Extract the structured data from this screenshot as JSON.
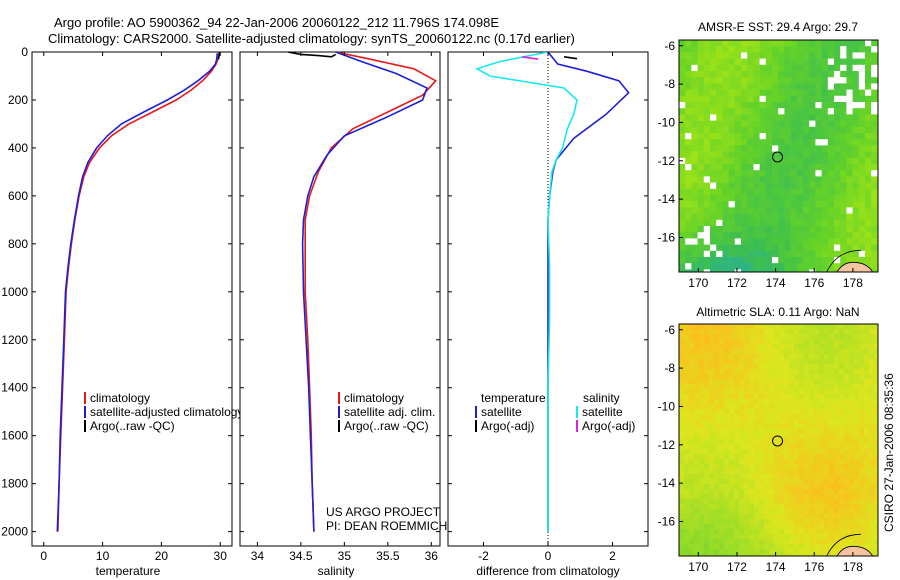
{
  "header": {
    "line1": "Argo profile: AO 5900362_94 22-Jan-2006 20060122_212 11.796S 174.098E",
    "line2": "Climatology: CARS2000. Satellite-adjusted climatology: synTS_20060122.nc (0.17d earlier)"
  },
  "side_label": "CSIRO 27-Jan-2006 08:35:36",
  "project": {
    "line1": "US ARGO PROJECT",
    "line2": "PI: DEAN ROEMMICH"
  },
  "colors": {
    "climatology": "#e41a1c",
    "satellite": "#1f1fd8",
    "argo": "#000000",
    "satellite_diff": "#18e8f0",
    "argo_diff": "#e020e0"
  },
  "depth_axis": {
    "ticks": [
      0,
      200,
      400,
      600,
      800,
      1000,
      1200,
      1400,
      1600,
      1800,
      2000
    ],
    "range": [
      0,
      2060
    ]
  },
  "chart_data": [
    {
      "id": "temperature",
      "type": "line",
      "xlabel": "temperature",
      "ylabel": "depth",
      "xlim": [
        -2,
        32
      ],
      "xticks": [
        0,
        10,
        20,
        30
      ],
      "legend": [
        "climatology",
        "satellite-adjusted climatology",
        "Argo(..raw -QC)"
      ],
      "series": [
        {
          "name": "climatology",
          "color": "#e41a1c",
          "points": [
            [
              29.8,
              5
            ],
            [
              29.6,
              30
            ],
            [
              29.3,
              50
            ],
            [
              28.5,
              80
            ],
            [
              27,
              120
            ],
            [
              25,
              160
            ],
            [
              22.5,
              200
            ],
            [
              18.5,
              250
            ],
            [
              14.5,
              300
            ],
            [
              11.5,
              350
            ],
            [
              9.5,
              400
            ],
            [
              7.8,
              460
            ],
            [
              6.8,
              520
            ],
            [
              6,
              600
            ],
            [
              5.3,
              700
            ],
            [
              4.7,
              800
            ],
            [
              4.2,
              900
            ],
            [
              3.8,
              1000
            ],
            [
              3.5,
              1200
            ],
            [
              3.2,
              1400
            ],
            [
              2.9,
              1600
            ],
            [
              2.6,
              1800
            ],
            [
              2.4,
              2000
            ]
          ]
        },
        {
          "name": "satellite-adjusted climatology",
          "color": "#1f1fd8",
          "points": [
            [
              29.5,
              5
            ],
            [
              29.4,
              30
            ],
            [
              29.2,
              50
            ],
            [
              28.2,
              80
            ],
            [
              26.2,
              120
            ],
            [
              23.8,
              160
            ],
            [
              21,
              200
            ],
            [
              17,
              250
            ],
            [
              13.2,
              300
            ],
            [
              10.8,
              350
            ],
            [
              9,
              400
            ],
            [
              7.5,
              460
            ],
            [
              6.6,
              520
            ],
            [
              5.9,
              600
            ],
            [
              5.2,
              700
            ],
            [
              4.6,
              800
            ],
            [
              4.1,
              900
            ],
            [
              3.7,
              1000
            ],
            [
              3.4,
              1200
            ],
            [
              3.1,
              1400
            ],
            [
              2.8,
              1600
            ],
            [
              2.6,
              1800
            ],
            [
              2.3,
              2000
            ]
          ]
        },
        {
          "name": "Argo(..raw -QC)",
          "color": "#000000",
          "points": [
            [
              29.9,
              0
            ],
            [
              29.8,
              15
            ],
            [
              29.7,
              30
            ]
          ]
        }
      ]
    },
    {
      "id": "salinity",
      "type": "line",
      "xlabel": "salinity",
      "ylabel": "depth",
      "xlim": [
        33.8,
        36.1
      ],
      "xticks": [
        34,
        34.5,
        35,
        35.5,
        36
      ],
      "legend": [
        "climatology",
        "satellite adj. clim.",
        "Argo(..raw -QC)"
      ],
      "series": [
        {
          "name": "climatology",
          "color": "#e41a1c",
          "points": [
            [
              34.9,
              0
            ],
            [
              35.3,
              30
            ],
            [
              35.8,
              70
            ],
            [
              36.05,
              120
            ],
            [
              35.9,
              180
            ],
            [
              35.5,
              250
            ],
            [
              35.1,
              320
            ],
            [
              34.85,
              400
            ],
            [
              34.7,
              500
            ],
            [
              34.6,
              600
            ],
            [
              34.55,
              700
            ],
            [
              34.55,
              800
            ],
            [
              34.55,
              1000
            ],
            [
              34.58,
              1200
            ],
            [
              34.6,
              1400
            ],
            [
              34.62,
              1600
            ],
            [
              34.63,
              1800
            ],
            [
              34.65,
              2000
            ]
          ]
        },
        {
          "name": "satellite adj. clim.",
          "color": "#1f1fd8",
          "points": [
            [
              34.9,
              0
            ],
            [
              35.2,
              40
            ],
            [
              35.6,
              90
            ],
            [
              35.95,
              150
            ],
            [
              35.9,
              200
            ],
            [
              35.5,
              270
            ],
            [
              35.0,
              350
            ],
            [
              34.8,
              430
            ],
            [
              34.65,
              520
            ],
            [
              34.58,
              600
            ],
            [
              34.53,
              700
            ],
            [
              34.52,
              800
            ],
            [
              34.53,
              1000
            ],
            [
              34.56,
              1200
            ],
            [
              34.59,
              1400
            ],
            [
              34.61,
              1600
            ],
            [
              34.63,
              1800
            ],
            [
              34.65,
              2000
            ]
          ]
        },
        {
          "name": "Argo(..raw -QC)",
          "color": "#000000",
          "points": [
            [
              34.35,
              0
            ],
            [
              34.5,
              10
            ],
            [
              34.7,
              15
            ],
            [
              34.85,
              20
            ],
            [
              34.9,
              10
            ]
          ]
        }
      ]
    },
    {
      "id": "difference",
      "type": "line",
      "xlabel": "difference from climatology",
      "ylabel": "depth",
      "xlim": [
        -3.1,
        3.1
      ],
      "xticks": [
        -2,
        0,
        2
      ],
      "legend_left": [
        "temperature",
        "satellite",
        "Argo(-adj)"
      ],
      "legend_right": [
        "salinity",
        "satellite",
        "Argo(-adj)"
      ],
      "series": [
        {
          "name": "temperature satellite",
          "color": "#1f1fd8",
          "points": [
            [
              0,
              0
            ],
            [
              0.3,
              50
            ],
            [
              1.2,
              80
            ],
            [
              2.2,
              120
            ],
            [
              2.5,
              170
            ],
            [
              1.8,
              260
            ],
            [
              0.8,
              360
            ],
            [
              0.25,
              450
            ],
            [
              0.15,
              500
            ],
            [
              0.1,
              550
            ],
            [
              0.05,
              600
            ],
            [
              0,
              700
            ],
            [
              0,
              800
            ],
            [
              0,
              2000
            ]
          ]
        },
        {
          "name": "salinity satellite",
          "color": "#18e8f0",
          "points": [
            [
              0,
              0
            ],
            [
              -1.5,
              40
            ],
            [
              -2.2,
              70
            ],
            [
              -1.8,
              100
            ],
            [
              0.5,
              150
            ],
            [
              0.9,
              200
            ],
            [
              0.8,
              260
            ],
            [
              0.6,
              320
            ],
            [
              0.45,
              400
            ],
            [
              0.25,
              450
            ],
            [
              0.12,
              500
            ],
            [
              0.05,
              600
            ],
            [
              0,
              700
            ],
            [
              0.05,
              900
            ],
            [
              0.05,
              1100
            ],
            [
              0,
              1400
            ],
            [
              0,
              2000
            ]
          ]
        },
        {
          "name": "Argo(-adj) salinity",
          "color": "#e020e0",
          "points": [
            [
              -0.8,
              20
            ],
            [
              -0.3,
              30
            ]
          ]
        },
        {
          "name": "Argo(-adj) temperature",
          "color": "#000000",
          "points": [
            [
              0.5,
              20
            ],
            [
              0.9,
              28
            ]
          ]
        }
      ]
    }
  ],
  "maps": [
    {
      "id": "sst-map",
      "title": "AMSR-E SST: 29.4 Argo: 29.7",
      "xticks": [
        170,
        172,
        174,
        176,
        178
      ],
      "yticks": [
        -6,
        -8,
        -10,
        -12,
        -14,
        -16
      ],
      "xlim": [
        169,
        179.3
      ],
      "ylim": [
        -17.8,
        -5.7
      ],
      "marker": [
        174.1,
        -11.8
      ]
    },
    {
      "id": "sla-map",
      "title": "Altimetric SLA: 0.11 Argo: NaN",
      "xticks": [
        170,
        172,
        174,
        176,
        178
      ],
      "yticks": [
        -6,
        -8,
        -10,
        -12,
        -14,
        -16
      ],
      "xlim": [
        169,
        179.3
      ],
      "ylim": [
        -17.8,
        -5.7
      ],
      "marker": [
        174.1,
        -11.8
      ]
    }
  ]
}
